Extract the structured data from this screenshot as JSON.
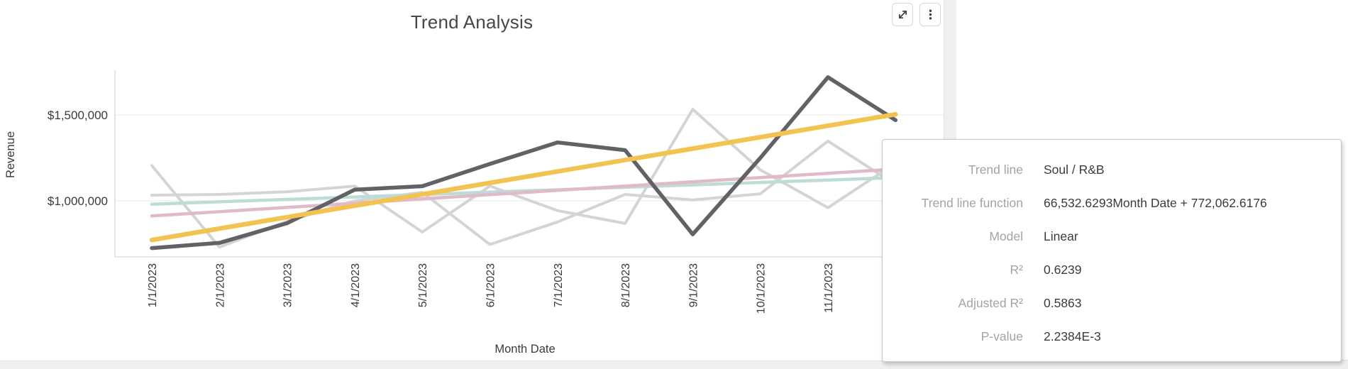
{
  "window": {
    "background_color": "#efefef",
    "card_color": "#ffffff"
  },
  "toolbar": {
    "expand_icon": "expand-diagonal-arrows",
    "menu_icon": "kebab-vertical-dots",
    "icon_color": "#3d3d3d"
  },
  "chart_data": {
    "type": "line",
    "title": "Trend Analysis",
    "xlabel": "Month Date",
    "ylabel": "Revenue",
    "x_tick_labels": [
      "1/1/2023",
      "2/1/2023",
      "3/1/2023",
      "4/1/2023",
      "5/1/2023",
      "6/1/2023",
      "7/1/2023",
      "8/1/2023",
      "9/1/2023",
      "10/1/2023",
      "11/1/2023"
    ],
    "x_point_count": 12,
    "y_ticks": [
      {
        "value": 1000000,
        "label": "$1,000,000"
      },
      {
        "value": 1500000,
        "label": "$1,500,000"
      }
    ],
    "ylim_implied": [
      670000,
      1770000
    ],
    "grid": "horizontal-only",
    "legend_position": "none",
    "series": [
      {
        "name": "other-genre-line-1",
        "role": "context",
        "color": "#d4d4d4",
        "width": 4,
        "values": [
          1205000,
          730000,
          881000,
          1000000,
          1049000,
          746000,
          877000,
          1037000,
          1005000,
          1041000,
          1348000,
          1095000
        ]
      },
      {
        "name": "other-genre-line-2",
        "role": "context",
        "color": "#d4d4d4",
        "width": 4,
        "values": [
          1033000,
          1037000,
          1053000,
          1086000,
          818000,
          1086000,
          943000,
          868000,
          1533000,
          1180000,
          960000,
          1220000
        ]
      },
      {
        "name": "trend-line-teal",
        "role": "trend",
        "color": "#bedcd7",
        "width": 4.5,
        "start_value": 980000,
        "end_value": 1135000
      },
      {
        "name": "trend-line-pink",
        "role": "trend",
        "color": "#e1bac9",
        "width": 4.5,
        "start_value": 912000,
        "end_value": 1185000
      },
      {
        "name": "soul-rb-revenue",
        "role": "data",
        "color": "#626266",
        "width": 5.5,
        "values": [
          725000,
          755000,
          870000,
          1065000,
          1085000,
          1215000,
          1340000,
          1295000,
          805000,
          1250000,
          1720000,
          1470000
        ]
      },
      {
        "name": "soul-rb-trend-line",
        "role": "trend-highlighted",
        "color": "#f3c351",
        "width": 6.5,
        "start_value": 772063,
        "end_value": 1503922
      }
    ]
  },
  "tooltip": {
    "rows": [
      {
        "label": "Trend line",
        "value": "Soul / R&B"
      },
      {
        "label": "Trend line function",
        "value": "66,532.6293Month Date + 772,062.6176"
      },
      {
        "label": "Model",
        "value": "Linear"
      },
      {
        "label": "R²",
        "value": "0.6239"
      },
      {
        "label": "Adjusted R²",
        "value": "0.5863"
      },
      {
        "label": "P-value",
        "value": "2.2384E-3"
      }
    ]
  }
}
